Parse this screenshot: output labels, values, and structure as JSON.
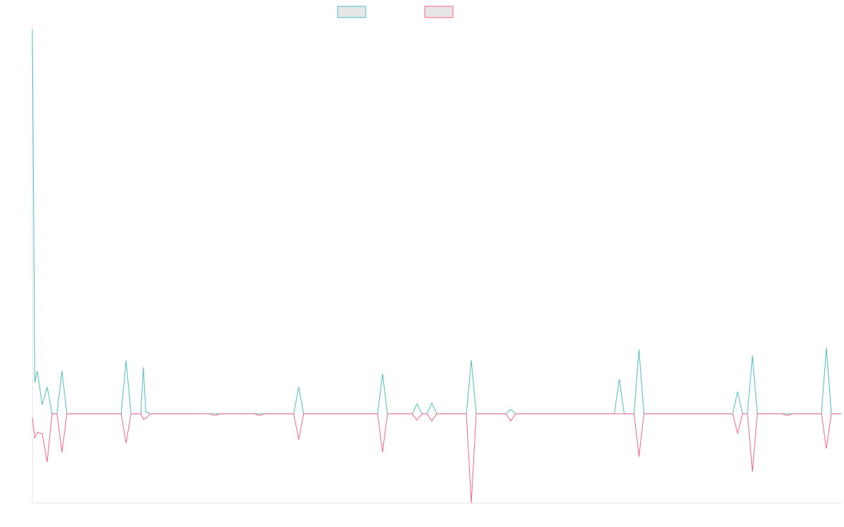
{
  "chart_data": {
    "type": "line",
    "title": "",
    "xlabel": "",
    "ylabel": "",
    "grid": false,
    "legend": "top-center",
    "ylim": [
      -100,
      435
    ],
    "xlim": [
      0,
      164
    ],
    "series": [
      {
        "color": "#4bc0c0",
        "fill": "#e6e6e6",
        "values": [
          [
            0,
            430
          ],
          [
            0.5,
            35
          ],
          [
            1,
            48
          ],
          [
            2,
            10
          ],
          [
            3,
            30
          ],
          [
            4,
            0
          ],
          [
            5,
            0
          ],
          [
            6,
            48
          ],
          [
            7,
            0
          ],
          [
            18,
            0
          ],
          [
            19,
            60
          ],
          [
            20,
            0
          ],
          [
            22,
            0
          ],
          [
            22.5,
            52
          ],
          [
            23,
            2
          ],
          [
            24,
            0
          ],
          [
            36,
            0
          ],
          [
            37,
            0
          ],
          [
            38,
            0
          ],
          [
            45,
            0
          ],
          [
            46,
            0
          ],
          [
            47,
            0
          ],
          [
            53,
            0
          ],
          [
            54,
            30
          ],
          [
            55,
            0
          ],
          [
            70,
            0
          ],
          [
            71,
            45
          ],
          [
            72,
            0
          ],
          [
            77,
            0
          ],
          [
            78,
            11
          ],
          [
            79,
            0
          ],
          [
            80,
            0
          ],
          [
            81,
            12
          ],
          [
            82,
            0
          ],
          [
            88,
            0
          ],
          [
            89,
            60
          ],
          [
            90,
            0
          ],
          [
            96,
            0
          ],
          [
            97,
            5
          ],
          [
            98,
            0
          ],
          [
            118,
            0
          ],
          [
            119,
            39
          ],
          [
            120,
            0
          ],
          [
            122,
            0
          ],
          [
            123,
            72
          ],
          [
            124,
            0
          ],
          [
            142,
            0
          ],
          [
            143,
            25
          ],
          [
            144,
            0
          ],
          [
            145,
            0
          ],
          [
            146,
            65
          ],
          [
            147,
            0
          ],
          [
            152,
            0
          ],
          [
            153,
            0
          ],
          [
            154,
            0
          ],
          [
            160,
            0
          ],
          [
            161,
            74
          ],
          [
            162,
            0
          ],
          [
            164,
            0
          ]
        ]
      },
      {
        "color": "#ff6384",
        "fill": "#e6e6e6",
        "values": [
          [
            0,
            -4
          ],
          [
            0.5,
            -27
          ],
          [
            1,
            -21
          ],
          [
            2,
            -22
          ],
          [
            3,
            -54
          ],
          [
            4,
            0
          ],
          [
            5,
            0
          ],
          [
            6,
            -43
          ],
          [
            7,
            0
          ],
          [
            18,
            0
          ],
          [
            19,
            -33
          ],
          [
            20,
            0
          ],
          [
            22,
            0
          ],
          [
            22.5,
            -6
          ],
          [
            23,
            -5
          ],
          [
            24,
            0
          ],
          [
            36,
            0
          ],
          [
            37,
            -2
          ],
          [
            38,
            0
          ],
          [
            45,
            0
          ],
          [
            46,
            -2
          ],
          [
            47,
            0
          ],
          [
            53,
            0
          ],
          [
            54,
            -29
          ],
          [
            55,
            0
          ],
          [
            70,
            0
          ],
          [
            71,
            -43
          ],
          [
            72,
            0
          ],
          [
            77,
            0
          ],
          [
            78,
            -7
          ],
          [
            79,
            0
          ],
          [
            80,
            0
          ],
          [
            81,
            -8
          ],
          [
            82,
            0
          ],
          [
            88,
            0
          ],
          [
            89,
            -100
          ],
          [
            90,
            0
          ],
          [
            96,
            0
          ],
          [
            97,
            -8
          ],
          [
            98,
            0
          ],
          [
            118,
            0
          ],
          [
            119,
            0
          ],
          [
            120,
            0
          ],
          [
            122,
            0
          ],
          [
            123,
            -48
          ],
          [
            124,
            0
          ],
          [
            142,
            0
          ],
          [
            143,
            -22
          ],
          [
            144,
            0
          ],
          [
            145,
            0
          ],
          [
            146,
            -65
          ],
          [
            147,
            0
          ],
          [
            152,
            0
          ],
          [
            153,
            -2
          ],
          [
            154,
            0
          ],
          [
            160,
            0
          ],
          [
            161,
            -39
          ],
          [
            162,
            0
          ],
          [
            164,
            0
          ]
        ]
      }
    ]
  }
}
